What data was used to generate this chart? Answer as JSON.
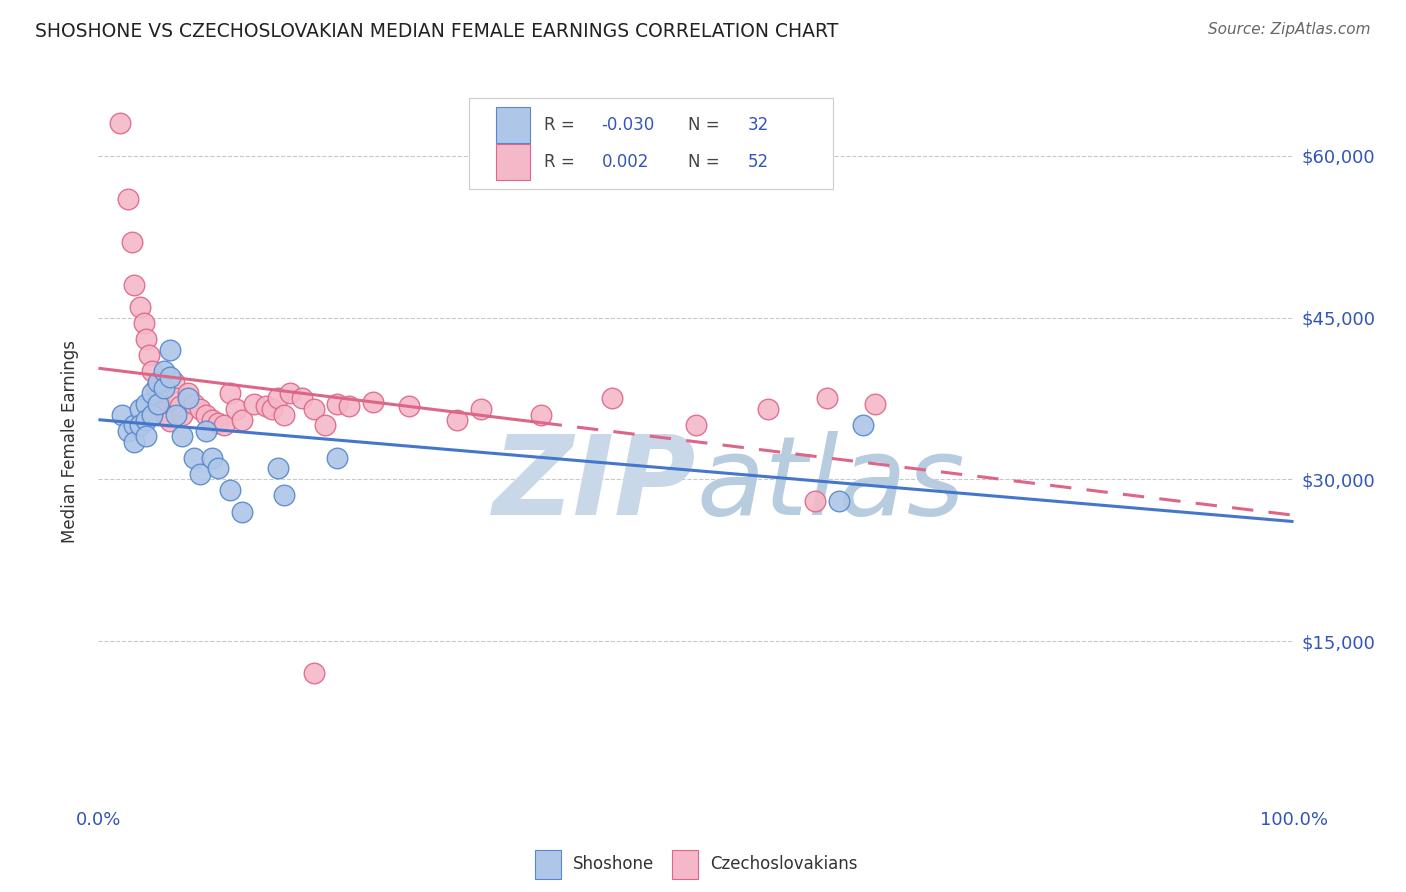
{
  "title": "SHOSHONE VS CZECHOSLOVAKIAN MEDIAN FEMALE EARNINGS CORRELATION CHART",
  "source": "Source: ZipAtlas.com",
  "ylabel": "Median Female Earnings",
  "blue_label": "Shoshone",
  "pink_label": "Czechoslovakians",
  "blue_R": "-0.030",
  "blue_N": "32",
  "pink_R": "0.002",
  "pink_N": "52",
  "blue_color": "#aec6e8",
  "pink_color": "#f5b8c8",
  "blue_edge": "#5588cc",
  "pink_edge": "#dd6688",
  "trend_blue": "#4477cc",
  "trend_pink": "#dd6688",
  "watermark_color": "#c8d8e8",
  "grid_color": "#bbbbbb",
  "blue_x": [
    0.02,
    0.025,
    0.03,
    0.03,
    0.035,
    0.035,
    0.04,
    0.04,
    0.04,
    0.045,
    0.045,
    0.05,
    0.05,
    0.055,
    0.055,
    0.06,
    0.06,
    0.065,
    0.07,
    0.075,
    0.08,
    0.085,
    0.09,
    0.095,
    0.1,
    0.11,
    0.12,
    0.15,
    0.155,
    0.2,
    0.62,
    0.64
  ],
  "blue_y": [
    36000,
    34500,
    35000,
    33500,
    36500,
    35000,
    37000,
    35500,
    34000,
    38000,
    36000,
    39000,
    37000,
    40000,
    38500,
    42000,
    39500,
    36000,
    34000,
    37500,
    32000,
    30500,
    34500,
    32000,
    31000,
    29000,
    27000,
    31000,
    28500,
    32000,
    28000,
    35000
  ],
  "pink_x": [
    0.018,
    0.025,
    0.028,
    0.03,
    0.035,
    0.038,
    0.04,
    0.042,
    0.045,
    0.048,
    0.05,
    0.052,
    0.055,
    0.058,
    0.06,
    0.063,
    0.065,
    0.068,
    0.07,
    0.075,
    0.08,
    0.085,
    0.09,
    0.095,
    0.1,
    0.105,
    0.11,
    0.115,
    0.12,
    0.13,
    0.14,
    0.145,
    0.15,
    0.155,
    0.16,
    0.17,
    0.18,
    0.19,
    0.2,
    0.21,
    0.23,
    0.26,
    0.3,
    0.32,
    0.37,
    0.43,
    0.5,
    0.56,
    0.6,
    0.61,
    0.65,
    0.18
  ],
  "pink_y": [
    63000,
    56000,
    52000,
    48000,
    46000,
    44500,
    43000,
    41500,
    40000,
    38500,
    37500,
    36800,
    36200,
    35800,
    35400,
    39000,
    37500,
    36800,
    36000,
    38000,
    37000,
    36500,
    36000,
    35500,
    35200,
    35000,
    38000,
    36500,
    35500,
    37000,
    36800,
    36500,
    37500,
    36000,
    38000,
    37500,
    36500,
    35000,
    37000,
    36800,
    37200,
    36800,
    35500,
    36500,
    36000,
    37500,
    35000,
    36500,
    28000,
    37500,
    37000,
    12000
  ]
}
